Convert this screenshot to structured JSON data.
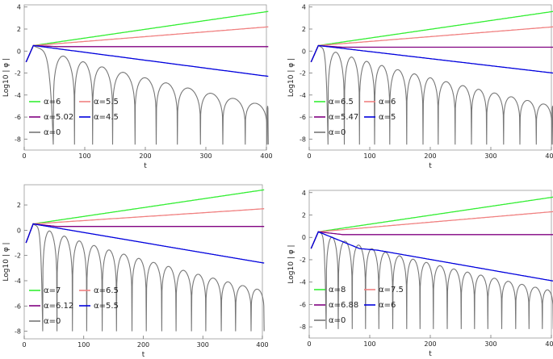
{
  "chart_data": [
    {
      "type": "line",
      "xlabel": "t",
      "ylabel": "Log10 | φ |",
      "xlim": [
        0,
        400
      ],
      "ylim": [
        -9,
        4.2
      ],
      "xticks": [
        "0",
        "100",
        "200",
        "300",
        "400"
      ],
      "yticks": [
        "4",
        "2",
        "0",
        "-2",
        "-4",
        "-6",
        "-8"
      ],
      "legend_position": "bottom-left",
      "series": [
        {
          "name": "α=6",
          "color": "#33ee33",
          "kind": "growth",
          "end_value": 3.6
        },
        {
          "name": "α=5.5",
          "color": "#f08080",
          "kind": "growth",
          "end_value": 2.2
        },
        {
          "name": "α=5.02",
          "color": "#800080",
          "kind": "flat",
          "end_value": 0.4
        },
        {
          "name": "α=4.5",
          "color": "#0000dd",
          "kind": "decay",
          "end_value": -2.3
        },
        {
          "name": "α=0",
          "color": "#777777",
          "kind": "oscillating-decay",
          "envelope_end": -5.0,
          "dips": [
            45,
            80,
            110,
            143,
            180,
            215,
            250,
            288,
            325,
            362,
            398
          ],
          "dip_depth": -8.5
        }
      ]
    },
    {
      "type": "line",
      "xlabel": "t",
      "ylabel": "Log10 | φ |",
      "xlim": [
        0,
        400
      ],
      "ylim": [
        -9,
        4.2
      ],
      "xticks": [
        "0",
        "100",
        "200",
        "300",
        "400"
      ],
      "yticks": [
        "4",
        "2",
        "0",
        "-2",
        "-4",
        "-6",
        "-8"
      ],
      "legend_position": "bottom-left",
      "series": [
        {
          "name": "α=6.5",
          "color": "#33ee33",
          "kind": "growth",
          "end_value": 3.6
        },
        {
          "name": "α=6",
          "color": "#f08080",
          "kind": "growth",
          "end_value": 2.2
        },
        {
          "name": "α=5.47",
          "color": "#800080",
          "kind": "flat",
          "end_value": 0.35
        },
        {
          "name": "α=5",
          "color": "#0000dd",
          "kind": "decay",
          "end_value": -2.0
        },
        {
          "name": "α=0",
          "color": "#777777",
          "kind": "oscillating-decay",
          "envelope_end": -5.0,
          "dips": [
            28,
            55,
            80,
            105,
            130,
            158,
            185,
            210,
            238,
            265,
            290,
            318,
            345,
            372,
            398
          ],
          "dip_depth": -8.5
        }
      ]
    },
    {
      "type": "line",
      "xlabel": "t",
      "ylabel": "Log10 | φ |",
      "xlim": [
        0,
        400
      ],
      "ylim": [
        -8.6,
        3.6
      ],
      "xticks": [
        "0",
        "100",
        "200",
        "300",
        "400"
      ],
      "yticks": [
        "2",
        "0",
        "-2",
        "-4",
        "-6",
        "-8"
      ],
      "legend_position": "bottom-left",
      "series": [
        {
          "name": "α=7",
          "color": "#33ee33",
          "kind": "growth",
          "end_value": 3.2
        },
        {
          "name": "α=6.5",
          "color": "#f08080",
          "kind": "growth",
          "end_value": 1.7
        },
        {
          "name": "α=6.12",
          "color": "#800080",
          "kind": "flat",
          "end_value": 0.3
        },
        {
          "name": "α=5.5",
          "color": "#0000dd",
          "kind": "decay",
          "end_value": -2.6
        },
        {
          "name": "α=0",
          "color": "#777777",
          "kind": "oscillating-decay",
          "envelope_end": -4.8,
          "dips": [
            28,
            52,
            78,
            102,
            128,
            152,
            178,
            202,
            228,
            252,
            278,
            302,
            328,
            352,
            378
          ],
          "dip_depth": -8.0
        }
      ]
    },
    {
      "type": "line",
      "xlabel": "t",
      "ylabel": "Log10 | φ |",
      "xlim": [
        0,
        400
      ],
      "ylim": [
        -9,
        4.2
      ],
      "xticks": [
        "0",
        "100",
        "200",
        "300",
        "400"
      ],
      "yticks": [
        "4",
        "2",
        "0",
        "-2",
        "-4",
        "-6",
        "-8"
      ],
      "legend_position": "bottom-left",
      "series": [
        {
          "name": "α=8",
          "color": "#33ee33",
          "kind": "growth",
          "end_value": 3.6
        },
        {
          "name": "α=7.5",
          "color": "#f08080",
          "kind": "growth",
          "end_value": 2.3
        },
        {
          "name": "α=6.88",
          "color": "#800080",
          "kind": "flat",
          "end_value": 0.25
        },
        {
          "name": "α=6",
          "color": "#0000dd",
          "kind": "decay-kink",
          "end_value": -3.9
        },
        {
          "name": "α=0",
          "color": "#777777",
          "kind": "oscillating-decay",
          "envelope_end": -4.8,
          "dips": [
            25,
            45,
            68,
            90,
            112,
            135,
            158,
            180,
            202,
            225,
            248,
            270,
            292,
            315,
            338,
            360,
            382
          ],
          "dip_depth": -8.2
        }
      ]
    }
  ]
}
